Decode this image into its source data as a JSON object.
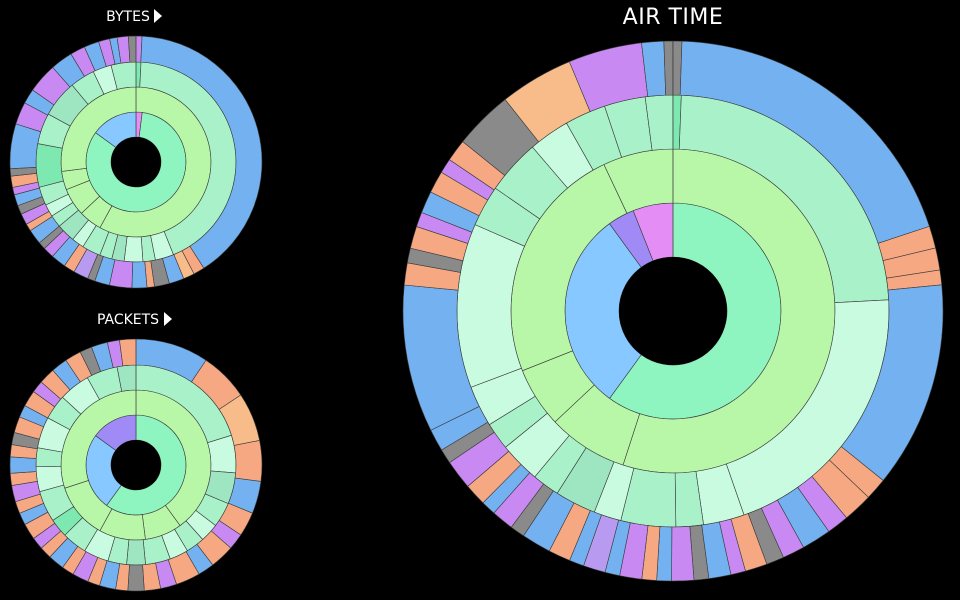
{
  "titles": {
    "bytes": "BYTES",
    "packets": "PACKETS",
    "airtime": "AIR TIME"
  },
  "palette": {
    "ring1": [
      "#8ef5c0",
      "#86c8ff",
      "#a08af5",
      "#e48ef5"
    ],
    "ring2": [
      "#b9f7a8"
    ],
    "ring3": [
      "#a9f2c9",
      "#c9fbe0",
      "#9de6c1",
      "#7de8b0",
      "#6ee0a8"
    ],
    "ring4": [
      "#74b1f0",
      "#f5a882",
      "#c88af2",
      "#8a8a8a",
      "#f7bc8a",
      "#a7f0d2",
      "#7faee6",
      "#b89af0"
    ],
    "stroke": "#3a3a3a"
  },
  "chart_data": [
    {
      "type": "sunburst",
      "name": "bytes",
      "title": "BYTES",
      "rings": [
        [
          {
            "v": 2,
            "c": 3
          },
          {
            "v": 83,
            "c": 0
          },
          {
            "v": 15,
            "c": 1
          }
        ],
        [
          {
            "v": 58,
            "c": 0
          },
          {
            "v": 5,
            "c": 0
          },
          {
            "v": 6,
            "c": 0
          },
          {
            "v": 4,
            "c": 0
          },
          {
            "v": 27,
            "c": 0
          }
        ],
        [
          {
            "v": 0.8,
            "c": 3
          },
          {
            "v": 43,
            "c": 0
          },
          {
            "v": 3,
            "c": 1
          },
          {
            "v": 2,
            "c": 0
          },
          {
            "v": 3,
            "c": 1
          },
          {
            "v": 2,
            "c": 2
          },
          {
            "v": 2,
            "c": 0
          },
          {
            "v": 3,
            "c": 0
          },
          {
            "v": 2,
            "c": 1
          },
          {
            "v": 3,
            "c": 2
          },
          {
            "v": 2,
            "c": 0
          },
          {
            "v": 2,
            "c": 1
          },
          {
            "v": 3,
            "c": 0
          },
          {
            "v": 7,
            "c": 3
          },
          {
            "v": 5,
            "c": 0
          },
          {
            "v": 6,
            "c": 2
          },
          {
            "v": 4,
            "c": 0
          },
          {
            "v": 3,
            "c": 1
          },
          {
            "v": 4,
            "c": 0
          }
        ],
        [
          {
            "v": 0.8,
            "c": 2
          },
          {
            "v": 42,
            "c": 0
          },
          {
            "v": 1.5,
            "c": 1
          },
          {
            "v": 1.5,
            "c": 4
          },
          {
            "v": 2,
            "c": 0
          },
          {
            "v": 2,
            "c": 3
          },
          {
            "v": 1,
            "c": 1
          },
          {
            "v": 2,
            "c": 0
          },
          {
            "v": 3,
            "c": 2
          },
          {
            "v": 2,
            "c": 0
          },
          {
            "v": 1,
            "c": 3
          },
          {
            "v": 2,
            "c": 7
          },
          {
            "v": 1.5,
            "c": 1
          },
          {
            "v": 2,
            "c": 0
          },
          {
            "v": 1.5,
            "c": 2
          },
          {
            "v": 1,
            "c": 3
          },
          {
            "v": 2,
            "c": 0
          },
          {
            "v": 1,
            "c": 1
          },
          {
            "v": 1.5,
            "c": 2
          },
          {
            "v": 1.2,
            "c": 3
          },
          {
            "v": 1.5,
            "c": 0
          },
          {
            "v": 1,
            "c": 2
          },
          {
            "v": 1.5,
            "c": 1
          },
          {
            "v": 1,
            "c": 3
          },
          {
            "v": 6,
            "c": 0
          },
          {
            "v": 3,
            "c": 2
          },
          {
            "v": 2,
            "c": 0
          },
          {
            "v": 4,
            "c": 2
          },
          {
            "v": 3,
            "c": 0
          },
          {
            "v": 2,
            "c": 2
          },
          {
            "v": 2,
            "c": 0
          },
          {
            "v": 1.5,
            "c": 2
          },
          {
            "v": 1,
            "c": 0
          },
          {
            "v": 1.5,
            "c": 2
          },
          {
            "v": 1,
            "c": 3
          }
        ]
      ]
    },
    {
      "type": "sunburst",
      "name": "packets",
      "title": "PACKETS",
      "rings": [
        [
          {
            "v": 60,
            "c": 0
          },
          {
            "v": 25,
            "c": 1
          },
          {
            "v": 15,
            "c": 2
          }
        ],
        [
          {
            "v": 40,
            "c": 0
          },
          {
            "v": 8,
            "c": 0
          },
          {
            "v": 10,
            "c": 0
          },
          {
            "v": 12,
            "c": 0
          },
          {
            "v": 30,
            "c": 0
          }
        ],
        [
          {
            "v": 20,
            "c": 0
          },
          {
            "v": 6,
            "c": 1
          },
          {
            "v": 5,
            "c": 2
          },
          {
            "v": 4,
            "c": 0
          },
          {
            "v": 3,
            "c": 1
          },
          {
            "v": 3,
            "c": 0
          },
          {
            "v": 3,
            "c": 1
          },
          {
            "v": 4,
            "c": 0
          },
          {
            "v": 3,
            "c": 2
          },
          {
            "v": 3,
            "c": 0
          },
          {
            "v": 4,
            "c": 1
          },
          {
            "v": 4,
            "c": 0
          },
          {
            "v": 3,
            "c": 3
          },
          {
            "v": 5,
            "c": 0
          },
          {
            "v": 4,
            "c": 1
          },
          {
            "v": 3,
            "c": 0
          },
          {
            "v": 5,
            "c": 1
          },
          {
            "v": 4,
            "c": 0
          },
          {
            "v": 5,
            "c": 1
          },
          {
            "v": 5,
            "c": 0
          },
          {
            "v": 3,
            "c": 2
          }
        ],
        [
          {
            "v": 9,
            "c": 0
          },
          {
            "v": 6,
            "c": 1
          },
          {
            "v": 6,
            "c": 4
          },
          {
            "v": 5,
            "c": 1
          },
          {
            "v": 4,
            "c": 0
          },
          {
            "v": 3,
            "c": 1
          },
          {
            "v": 2,
            "c": 2
          },
          {
            "v": 3,
            "c": 1
          },
          {
            "v": 2,
            "c": 0
          },
          {
            "v": 3,
            "c": 1
          },
          {
            "v": 2,
            "c": 2
          },
          {
            "v": 2,
            "c": 1
          },
          {
            "v": 2,
            "c": 3
          },
          {
            "v": 1.5,
            "c": 1
          },
          {
            "v": 2,
            "c": 0
          },
          {
            "v": 1.5,
            "c": 1
          },
          {
            "v": 2,
            "c": 2
          },
          {
            "v": 1.5,
            "c": 1
          },
          {
            "v": 2,
            "c": 0
          },
          {
            "v": 1.5,
            "c": 1
          },
          {
            "v": 1.5,
            "c": 2
          },
          {
            "v": 2,
            "c": 1
          },
          {
            "v": 1.5,
            "c": 0
          },
          {
            "v": 1.5,
            "c": 1
          },
          {
            "v": 2,
            "c": 2
          },
          {
            "v": 1.5,
            "c": 1
          },
          {
            "v": 2,
            "c": 0
          },
          {
            "v": 1.5,
            "c": 1
          },
          {
            "v": 1.5,
            "c": 3
          },
          {
            "v": 2,
            "c": 1
          },
          {
            "v": 1.5,
            "c": 0
          },
          {
            "v": 2,
            "c": 1
          },
          {
            "v": 1.5,
            "c": 2
          },
          {
            "v": 2,
            "c": 1
          },
          {
            "v": 2,
            "c": 0
          },
          {
            "v": 2,
            "c": 1
          },
          {
            "v": 1.5,
            "c": 3
          },
          {
            "v": 2,
            "c": 0
          },
          {
            "v": 1.5,
            "c": 2
          },
          {
            "v": 2,
            "c": 1
          }
        ]
      ]
    },
    {
      "type": "sunburst",
      "name": "airtime",
      "title": "AIR TIME",
      "rings": [
        [
          {
            "v": 60,
            "c": 0
          },
          {
            "v": 30,
            "c": 1
          },
          {
            "v": 4,
            "c": 2
          },
          {
            "v": 6,
            "c": 3
          }
        ],
        [
          {
            "v": 55,
            "c": 0
          },
          {
            "v": 8,
            "c": 0
          },
          {
            "v": 6,
            "c": 0
          },
          {
            "v": 24,
            "c": 0
          },
          {
            "v": 7,
            "c": 0
          }
        ],
        [
          {
            "v": 0.6,
            "c": 3
          },
          {
            "v": 23,
            "c": 0
          },
          {
            "v": 20,
            "c": 1
          },
          {
            "v": 3,
            "c": 1
          },
          {
            "v": 2,
            "c": 0
          },
          {
            "v": 4,
            "c": 0
          },
          {
            "v": 2,
            "c": 1
          },
          {
            "v": 3,
            "c": 2
          },
          {
            "v": 2,
            "c": 0
          },
          {
            "v": 3,
            "c": 1
          },
          {
            "v": 2,
            "c": 0
          },
          {
            "v": 3,
            "c": 1
          },
          {
            "v": 12,
            "c": 1
          },
          {
            "v": 3,
            "c": 0
          },
          {
            "v": 4,
            "c": 0
          },
          {
            "v": 3,
            "c": 1
          },
          {
            "v": 3,
            "c": 0
          },
          {
            "v": 3,
            "c": 0
          },
          {
            "v": 2,
            "c": 0
          }
        ],
        [
          {
            "v": 0.6,
            "c": 3
          },
          {
            "v": 22,
            "c": 0
          },
          {
            "v": 1.5,
            "c": 1
          },
          {
            "v": 1.5,
            "c": 1
          },
          {
            "v": 1,
            "c": 1
          },
          {
            "v": 14,
            "c": 0
          },
          {
            "v": 1.5,
            "c": 1
          },
          {
            "v": 2,
            "c": 1
          },
          {
            "v": 1.5,
            "c": 2
          },
          {
            "v": 2,
            "c": 0
          },
          {
            "v": 1.5,
            "c": 2
          },
          {
            "v": 1.2,
            "c": 3
          },
          {
            "v": 1.5,
            "c": 1
          },
          {
            "v": 1,
            "c": 2
          },
          {
            "v": 1.5,
            "c": 0
          },
          {
            "v": 1,
            "c": 3
          },
          {
            "v": 1.5,
            "c": 2
          },
          {
            "v": 1,
            "c": 0
          },
          {
            "v": 1,
            "c": 1
          },
          {
            "v": 1.5,
            "c": 2
          },
          {
            "v": 1,
            "c": 0
          },
          {
            "v": 1.5,
            "c": 7
          },
          {
            "v": 1,
            "c": 0
          },
          {
            "v": 1.5,
            "c": 1
          },
          {
            "v": 2,
            "c": 0
          },
          {
            "v": 1,
            "c": 3
          },
          {
            "v": 1.5,
            "c": 2
          },
          {
            "v": 1,
            "c": 0
          },
          {
            "v": 1.5,
            "c": 1
          },
          {
            "v": 2,
            "c": 2
          },
          {
            "v": 1,
            "c": 3
          },
          {
            "v": 1.5,
            "c": 0
          },
          {
            "v": 10,
            "c": 0
          },
          {
            "v": 1.5,
            "c": 1
          },
          {
            "v": 1,
            "c": 3
          },
          {
            "v": 1.5,
            "c": 1
          },
          {
            "v": 1,
            "c": 2
          },
          {
            "v": 1.5,
            "c": 0
          },
          {
            "v": 1.5,
            "c": 1
          },
          {
            "v": 1,
            "c": 2
          },
          {
            "v": 1.5,
            "c": 1
          },
          {
            "v": 4,
            "c": 3
          },
          {
            "v": 5,
            "c": 4
          },
          {
            "v": 5,
            "c": 2
          },
          {
            "v": 1.5,
            "c": 0
          },
          {
            "v": 0.6,
            "c": 3
          }
        ]
      ]
    }
  ]
}
